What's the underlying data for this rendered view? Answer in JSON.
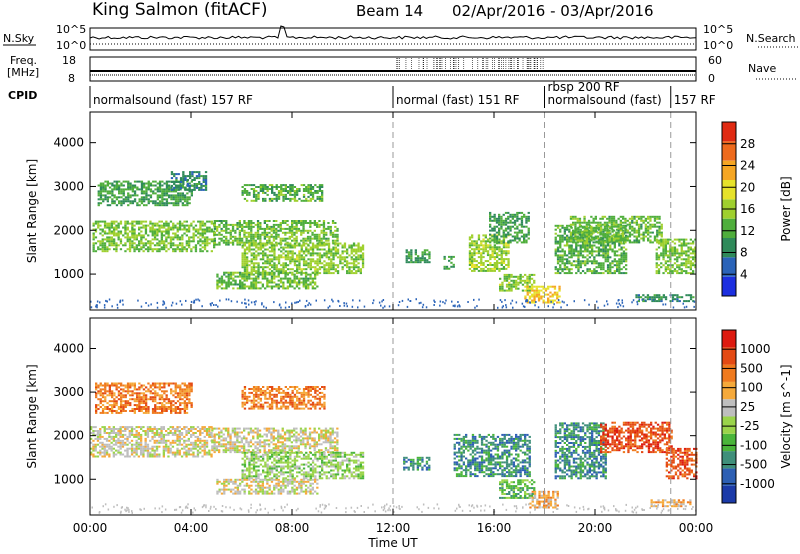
{
  "header": {
    "station": "King Salmon (fitACF)",
    "beam": "Beam 14",
    "daterange": "02/Apr/2016 - 03/Apr/2016"
  },
  "strips": {
    "nsky_label": "N.Sky",
    "freq_label_1": "Freq.",
    "freq_label_2": "[MHz]",
    "cpid_label": "CPID",
    "nsearch_label": "N.Search",
    "nave_label": "Nave",
    "nsky_ticks": [
      "10^5",
      "10^0"
    ],
    "freq_ticks": [
      "18",
      "8"
    ],
    "nsearch_ticks": [
      "10^5",
      "10^0"
    ],
    "nave_ticks": [
      "60",
      "0"
    ]
  },
  "cpid_segments": [
    {
      "label": "normalsound (fast) 157 RF",
      "start_h": 0,
      "end_h": 12
    },
    {
      "label": "normal (fast) 151 RF",
      "start_h": 12,
      "end_h": 18
    },
    {
      "label": "rbsp 200 RF",
      "start_h": 18,
      "end_h": 23
    },
    {
      "label": "normalsound (fast)",
      "start_h": 18,
      "end_h": 23
    },
    {
      "label": "157 RF",
      "start_h": 23,
      "end_h": 24
    }
  ],
  "chart_data": [
    {
      "type": "heatmap",
      "name": "power",
      "xlabel": "",
      "ylabel": "Slant Range [km]",
      "xlim": [
        0,
        24
      ],
      "ylim": [
        180,
        4700
      ],
      "yticks": [
        1000,
        2000,
        3000,
        4000
      ],
      "colorbar": {
        "label": "Power [dB]",
        "range": [
          0,
          30
        ],
        "ticks": [
          "4",
          "8",
          "12",
          "16",
          "20",
          "24",
          "28"
        ],
        "colors": [
          "#1c2fe0",
          "#2a63b8",
          "#2f8a5a",
          "#4fae3c",
          "#9fd02e",
          "#e6e22a",
          "#f5a623",
          "#ee6a1c",
          "#e02a12"
        ]
      },
      "regions": [
        {
          "x0": 0.1,
          "x1": 4.9,
          "y0": 1500,
          "y1": 2200,
          "level": 13
        },
        {
          "x0": 4.9,
          "x1": 9.8,
          "y0": 1650,
          "y1": 2200,
          "level": 12
        },
        {
          "x0": 6.0,
          "x1": 10.8,
          "y0": 1000,
          "y1": 1700,
          "level": 14
        },
        {
          "x0": 5.0,
          "x1": 9.0,
          "y0": 650,
          "y1": 1050,
          "level": 12
        },
        {
          "x0": 0.3,
          "x1": 4.0,
          "y0": 2550,
          "y1": 3100,
          "level": 10
        },
        {
          "x0": 6.0,
          "x1": 9.2,
          "y0": 2650,
          "y1": 3050,
          "level": 11
        },
        {
          "x0": 3.2,
          "x1": 4.6,
          "y0": 2900,
          "y1": 3350,
          "level": 7
        },
        {
          "x0": 12.5,
          "x1": 13.4,
          "y0": 1250,
          "y1": 1550,
          "level": 9
        },
        {
          "x0": 14.0,
          "x1": 14.4,
          "y0": 1100,
          "y1": 1400,
          "level": 9
        },
        {
          "x0": 15.0,
          "x1": 16.6,
          "y0": 1050,
          "y1": 1900,
          "level": 15
        },
        {
          "x0": 15.8,
          "x1": 17.4,
          "y0": 1700,
          "y1": 2400,
          "level": 9
        },
        {
          "x0": 16.2,
          "x1": 17.6,
          "y0": 600,
          "y1": 1000,
          "level": 14
        },
        {
          "x0": 17.2,
          "x1": 18.6,
          "y0": 330,
          "y1": 700,
          "level": 20
        },
        {
          "x0": 18.4,
          "x1": 21.2,
          "y0": 1000,
          "y1": 2100,
          "level": 11
        },
        {
          "x0": 19.0,
          "x1": 22.6,
          "y0": 1700,
          "y1": 2300,
          "level": 12
        },
        {
          "x0": 22.4,
          "x1": 24.0,
          "y0": 1000,
          "y1": 1800,
          "level": 13
        },
        {
          "x0": 21.6,
          "x1": 23.9,
          "y0": 360,
          "y1": 520,
          "level": 8
        }
      ]
    },
    {
      "type": "heatmap",
      "name": "velocity",
      "xlabel": "Time UT",
      "ylabel": "Slant Range [km]",
      "xlim": [
        0,
        24
      ],
      "ylim": [
        180,
        4700
      ],
      "yticks": [
        1000,
        2000,
        3000,
        4000
      ],
      "xticks": [
        "00:00",
        "04:00",
        "08:00",
        "12:00",
        "16:00",
        "20:00",
        "00:00"
      ],
      "colorbar": {
        "label": "Velocity [m s^-1]",
        "ticks": [
          "1000",
          "500",
          "100",
          "25",
          "-25",
          "-100",
          "-500",
          "-1000"
        ],
        "colors": [
          "#1b3aa8",
          "#2d5fb3",
          "#3f8f7a",
          "#4ab53a",
          "#9ad44a",
          "#bebebe",
          "#f5a93a",
          "#ef7a1e",
          "#e44a14",
          "#dd1a10"
        ]
      },
      "regions": [
        {
          "x0": 0.0,
          "x1": 4.8,
          "y0": 1500,
          "y1": 2200,
          "level": 5
        },
        {
          "x0": 4.8,
          "x1": 9.8,
          "y0": 1600,
          "y1": 2150,
          "level": 5
        },
        {
          "x0": 6.0,
          "x1": 10.8,
          "y0": 1000,
          "y1": 1600,
          "level": 4
        },
        {
          "x0": 5.0,
          "x1": 9.0,
          "y0": 650,
          "y1": 1000,
          "level": 5
        },
        {
          "x0": 0.2,
          "x1": 4.0,
          "y0": 2500,
          "y1": 3200,
          "level": 7
        },
        {
          "x0": 6.0,
          "x1": 9.3,
          "y0": 2600,
          "y1": 3100,
          "level": 7
        },
        {
          "x0": 12.4,
          "x1": 13.4,
          "y0": 1200,
          "y1": 1500,
          "level": 2
        },
        {
          "x0": 14.4,
          "x1": 17.4,
          "y0": 1050,
          "y1": 2000,
          "level": 2
        },
        {
          "x0": 16.2,
          "x1": 17.6,
          "y0": 550,
          "y1": 1000,
          "level": 3
        },
        {
          "x0": 17.4,
          "x1": 18.5,
          "y0": 330,
          "y1": 700,
          "level": 6
        },
        {
          "x0": 18.4,
          "x1": 20.4,
          "y0": 1000,
          "y1": 2300,
          "level": 2
        },
        {
          "x0": 20.2,
          "x1": 23.0,
          "y0": 1600,
          "y1": 2300,
          "level": 8
        },
        {
          "x0": 22.8,
          "x1": 24.0,
          "y0": 1000,
          "y1": 1700,
          "level": 8
        },
        {
          "x0": 22.2,
          "x1": 23.8,
          "y0": 360,
          "y1": 520,
          "level": 6
        }
      ]
    }
  ]
}
